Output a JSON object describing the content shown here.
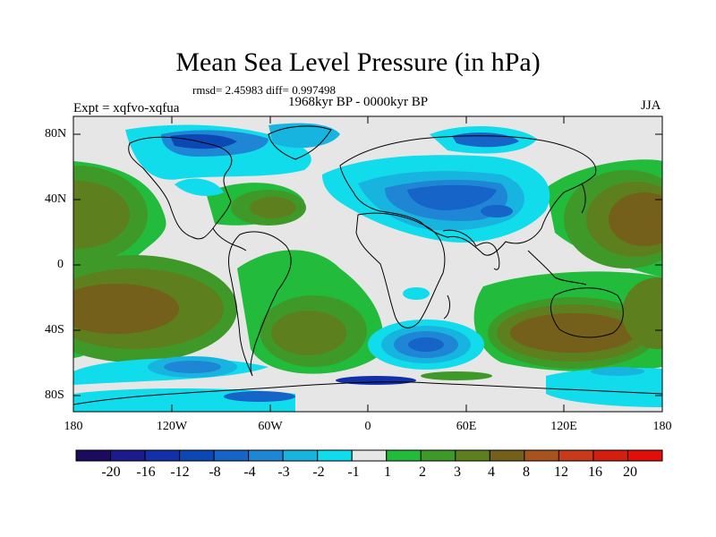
{
  "title": "Mean Sea Level Pressure (in hPa)",
  "stats": "rmsd= 2.45983 diff= 0.997498",
  "period": "1968kyr BP - 0000kyr BP",
  "experiment": "Expt = xqfvo-xqfua",
  "season": "JJA",
  "lat_labels": [
    "80N",
    "40N",
    "0",
    "40S",
    "80S"
  ],
  "lon_labels": [
    "180",
    "120W",
    "60W",
    "0",
    "60E",
    "120E",
    "180"
  ],
  "colorbar": {
    "labels": [
      "-20",
      "-16",
      "-12",
      "-8",
      "-4",
      "-3",
      "-2",
      "-1",
      "1",
      "2",
      "3",
      "4",
      "8",
      "12",
      "16",
      "20"
    ],
    "colors": [
      "#1b0a5e",
      "#1c1a8c",
      "#1330a8",
      "#0c48b4",
      "#1664c8",
      "#1f86d6",
      "#18b4e0",
      "#10dcec",
      "#e6e6e6",
      "#22bb3c",
      "#3f9929",
      "#5e7f1e",
      "#74601a",
      "#a8531e",
      "#c83a1a",
      "#d41e0f",
      "#e20e08"
    ]
  }
}
